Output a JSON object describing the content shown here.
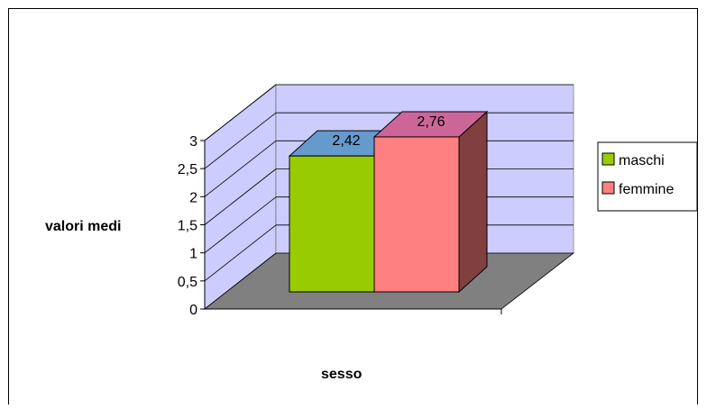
{
  "chart_data": {
    "type": "bar",
    "title": "",
    "xlabel": "sesso",
    "ylabel": "valori medi",
    "ylim": [
      0,
      3
    ],
    "yticks": [
      "0",
      "0,5",
      "1",
      "1,5",
      "2",
      "2,5",
      "3"
    ],
    "grid": true,
    "legend_position": "right",
    "categories": [
      ""
    ],
    "series": [
      {
        "name": "maschi",
        "values": [
          2.42
        ],
        "label": "2,42",
        "color": "#99CC00"
      },
      {
        "name": "femmine",
        "values": [
          2.76
        ],
        "label": "2,76",
        "color": "#FF8080"
      }
    ],
    "colors": {
      "wall": "#CCCCFF",
      "floor": "#808080",
      "grid": "#000000"
    }
  }
}
